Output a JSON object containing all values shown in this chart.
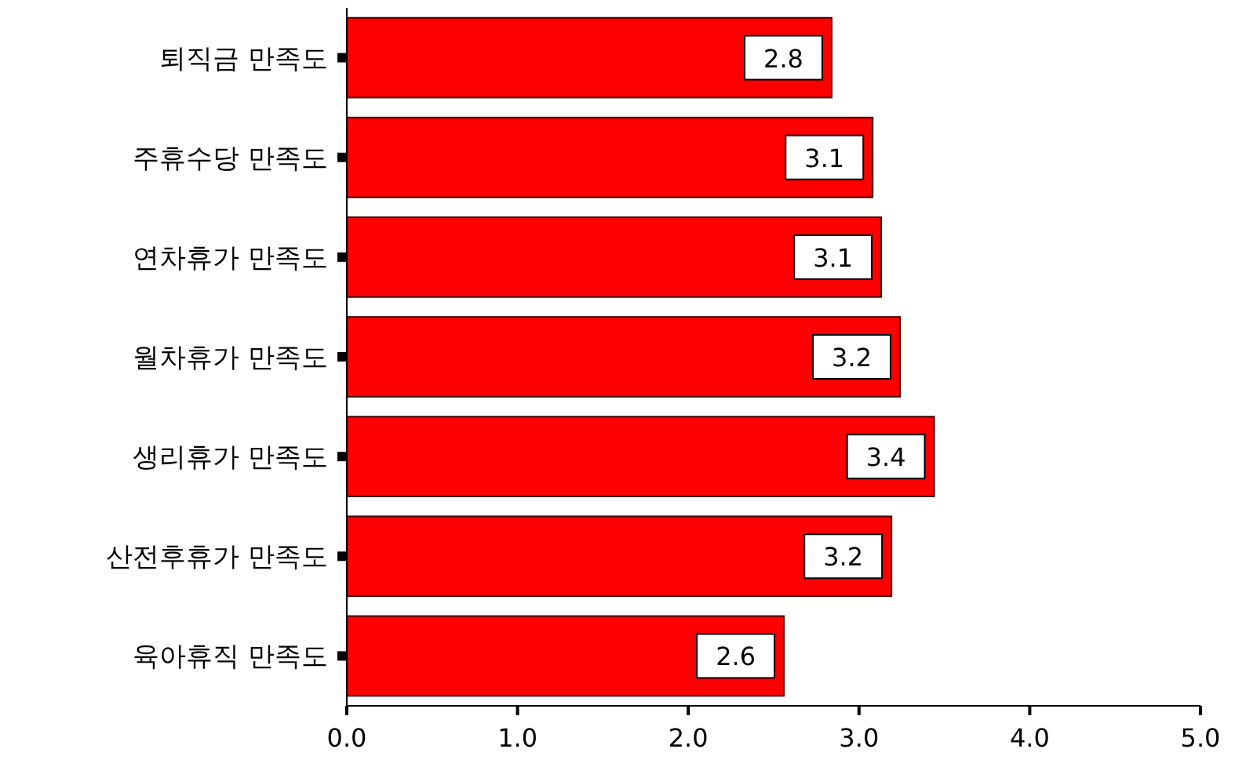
{
  "chart_data": {
    "type": "bar",
    "orientation": "horizontal",
    "categories": [
      "퇴직금 만족도",
      "주휴수당 만족도",
      "연차휴가 만족도",
      "월차휴가 만족도",
      "생리휴가 만족도",
      "산전후휴가 만족도",
      "육아휴직 만족도"
    ],
    "values": [
      2.84,
      3.08,
      3.13,
      3.24,
      3.44,
      3.19,
      2.56
    ],
    "value_labels": [
      "2.8",
      "3.1",
      "3.1",
      "3.2",
      "3.4",
      "3.2",
      "2.6"
    ],
    "color": "#ff0000",
    "xlim": [
      0,
      5
    ],
    "xticks": [
      {
        "value": 0,
        "label": "0.0"
      },
      {
        "value": 1,
        "label": "1.0"
      },
      {
        "value": 2,
        "label": "2.0"
      },
      {
        "value": 3,
        "label": "3.0"
      },
      {
        "value": 4,
        "label": "4.0"
      },
      {
        "value": 5,
        "label": "5.0"
      }
    ],
    "grid": false
  }
}
